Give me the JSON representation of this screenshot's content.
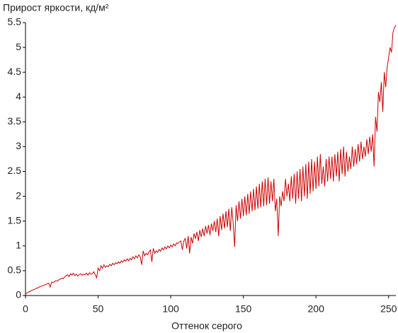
{
  "chart_data": {
    "type": "line",
    "title": "Прирост яркости, кд/м²",
    "x_label": "Оттенок серого",
    "color": "#cc0000",
    "x": [
      0,
      1,
      2,
      3,
      4,
      5,
      6,
      7,
      8,
      9,
      10,
      11,
      12,
      13,
      14,
      15,
      16,
      17,
      18,
      19,
      20,
      21,
      22,
      23,
      24,
      25,
      26,
      27,
      28,
      29,
      30,
      31,
      32,
      33,
      34,
      35,
      36,
      37,
      38,
      39,
      40,
      41,
      42,
      43,
      44,
      45,
      46,
      47,
      48,
      49,
      50,
      51,
      52,
      53,
      54,
      55,
      56,
      57,
      58,
      59,
      60,
      61,
      62,
      63,
      64,
      65,
      66,
      67,
      68,
      69,
      70,
      71,
      72,
      73,
      74,
      75,
      76,
      77,
      78,
      79,
      80,
      81,
      82,
      83,
      84,
      85,
      86,
      87,
      88,
      89,
      90,
      91,
      92,
      93,
      94,
      95,
      96,
      97,
      98,
      99,
      100,
      101,
      102,
      103,
      104,
      105,
      106,
      107,
      108,
      109,
      110,
      111,
      112,
      113,
      114,
      115,
      116,
      117,
      118,
      119,
      120,
      121,
      122,
      123,
      124,
      125,
      126,
      127,
      128,
      129,
      130,
      131,
      132,
      133,
      134,
      135,
      136,
      137,
      138,
      139,
      140,
      141,
      142,
      143,
      144,
      145,
      146,
      147,
      148,
      149,
      150,
      151,
      152,
      153,
      154,
      155,
      156,
      157,
      158,
      159,
      160,
      161,
      162,
      163,
      164,
      165,
      166,
      167,
      168,
      169,
      170,
      171,
      172,
      173,
      174,
      175,
      176,
      177,
      178,
      179,
      180,
      181,
      182,
      183,
      184,
      185,
      186,
      187,
      188,
      189,
      190,
      191,
      192,
      193,
      194,
      195,
      196,
      197,
      198,
      199,
      200,
      201,
      202,
      203,
      204,
      205,
      206,
      207,
      208,
      209,
      210,
      211,
      212,
      213,
      214,
      215,
      216,
      217,
      218,
      219,
      220,
      221,
      222,
      223,
      224,
      225,
      226,
      227,
      228,
      229,
      230,
      231,
      232,
      233,
      234,
      235,
      236,
      237,
      238,
      239,
      240,
      241,
      242,
      243,
      244,
      245,
      246,
      247,
      248,
      249,
      250,
      251,
      252,
      253,
      254,
      255
    ],
    "values": [
      0.03,
      0.05,
      0.07,
      0.08,
      0.1,
      0.11,
      0.12,
      0.14,
      0.15,
      0.16,
      0.18,
      0.19,
      0.2,
      0.21,
      0.22,
      0.24,
      0.25,
      0.17,
      0.27,
      0.26,
      0.28,
      0.3,
      0.29,
      0.32,
      0.33,
      0.35,
      0.34,
      0.38,
      0.4,
      0.42,
      0.38,
      0.44,
      0.41,
      0.45,
      0.4,
      0.43,
      0.39,
      0.42,
      0.44,
      0.41,
      0.43,
      0.42,
      0.45,
      0.41,
      0.46,
      0.43,
      0.44,
      0.48,
      0.42,
      0.36,
      0.55,
      0.5,
      0.6,
      0.55,
      0.62,
      0.57,
      0.6,
      0.58,
      0.63,
      0.6,
      0.65,
      0.62,
      0.66,
      0.64,
      0.68,
      0.65,
      0.7,
      0.67,
      0.72,
      0.69,
      0.74,
      0.7,
      0.75,
      0.72,
      0.78,
      0.74,
      0.8,
      0.76,
      0.82,
      0.78,
      0.62,
      0.9,
      0.8,
      0.85,
      0.82,
      0.88,
      0.92,
      0.68,
      0.95,
      0.85,
      0.9,
      0.87,
      0.93,
      0.89,
      0.96,
      0.92,
      0.98,
      0.94,
      1.0,
      0.96,
      1.02,
      0.98,
      1.04,
      1.0,
      1.06,
      1.05,
      1.08,
      1.1,
      0.92,
      1.1,
      1.15,
      0.95,
      1.2,
      0.85,
      1.18,
      1.05,
      1.25,
      1.15,
      1.28,
      1.1,
      1.32,
      1.18,
      1.35,
      1.2,
      1.4,
      1.25,
      1.42,
      1.22,
      1.45,
      1.3,
      1.5,
      1.28,
      1.55,
      1.2,
      1.6,
      1.32,
      1.65,
      1.35,
      1.7,
      1.38,
      1.75,
      1.3,
      1.78,
      1.45,
      0.98,
      1.82,
      1.5,
      1.9,
      1.55,
      1.95,
      1.6,
      2.0,
      1.62,
      2.05,
      1.65,
      2.1,
      1.7,
      2.15,
      1.72,
      2.2,
      1.75,
      2.25,
      1.78,
      2.3,
      1.8,
      2.35,
      1.82,
      2.38,
      1.85,
      2.3,
      1.9,
      2.35,
      1.7,
      1.95,
      1.2,
      2.0,
      1.8,
      2.1,
      1.9,
      2.35,
      2.0,
      2.25,
      1.9,
      2.4,
      1.95,
      2.45,
      1.85,
      2.5,
      1.95,
      2.55,
      1.9,
      2.6,
      2.0,
      2.65,
      1.95,
      2.7,
      2.05,
      2.75,
      2.1,
      2.7,
      2.15,
      2.8,
      2.2,
      2.85,
      2.25,
      2.6,
      2.2,
      2.75,
      2.3,
      2.8,
      2.35,
      2.8,
      2.3,
      2.85,
      2.4,
      2.9,
      2.3,
      2.95,
      2.45,
      3.0,
      2.4,
      2.9,
      2.5,
      2.8,
      2.55,
      3.0,
      2.6,
      2.95,
      2.65,
      3.05,
      2.7,
      3.1,
      2.75,
      3.0,
      2.8,
      3.15,
      2.85,
      3.2,
      2.9,
      3.25,
      2.6,
      3.6,
      3.3,
      4.1,
      3.9,
      4.3,
      3.7,
      4.5,
      4.2,
      4.6,
      4.8,
      5.0,
      4.9,
      5.3,
      5.4,
      5.45
    ],
    "xlim": [
      0,
      255
    ],
    "ylim": [
      0,
      5.5
    ],
    "xticks": [
      0,
      50,
      100,
      150,
      200,
      250
    ],
    "yticks": [
      0,
      0.5,
      1,
      1.5,
      2,
      2.5,
      3,
      3.5,
      4,
      4.5,
      5,
      5.5
    ]
  }
}
